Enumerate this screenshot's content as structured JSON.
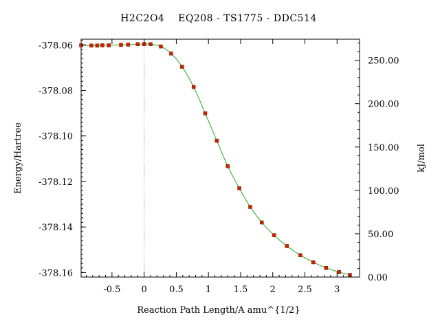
{
  "chart_data": {
    "type": "line",
    "title": "H2C2O4    EQ208 - TS1775 - DDC514",
    "xlabel": "Reaction Path Length/A amu^{1/2}",
    "ylabel": "Energy/Hartree",
    "y2label": "kJ/mol",
    "xlim": [
      -0.98,
      3.35
    ],
    "ylim": [
      -378.162,
      -378.0575
    ],
    "y2lim": [
      0.0,
      274.3
    ],
    "x_ticks": [
      {
        "value": -0.5,
        "label": "-0.5"
      },
      {
        "value": 0,
        "label": "0"
      },
      {
        "value": 0.5,
        "label": "0.5"
      },
      {
        "value": 1,
        "label": "1"
      },
      {
        "value": 1.5,
        "label": "1.5"
      },
      {
        "value": 2,
        "label": "2"
      },
      {
        "value": 2.5,
        "label": "2.5"
      },
      {
        "value": 3,
        "label": "3"
      }
    ],
    "y_ticks": [
      {
        "value": -378.06,
        "label": "-378.06"
      },
      {
        "value": -378.08,
        "label": "-378.08"
      },
      {
        "value": -378.1,
        "label": "-378.10"
      },
      {
        "value": -378.12,
        "label": "-378.12"
      },
      {
        "value": -378.14,
        "label": "-378.14"
      },
      {
        "value": -378.16,
        "label": "-378.16"
      }
    ],
    "y2_ticks": [
      {
        "value": 0,
        "label": "0.00"
      },
      {
        "value": 50,
        "label": "50.00"
      },
      {
        "value": 100,
        "label": "100.00"
      },
      {
        "value": 150,
        "label": "150.00"
      },
      {
        "value": 200,
        "label": "200.00"
      },
      {
        "value": 250,
        "label": "250.00"
      }
    ],
    "reference_line_x": 0,
    "series": [
      {
        "color_line": "#22aa22",
        "color_marker": "#cc2200",
        "points": [
          {
            "x": -0.98,
            "y": -378.0602
          },
          {
            "x": -0.82,
            "y": -378.0603
          },
          {
            "x": -0.73,
            "y": -378.0603
          },
          {
            "x": -0.65,
            "y": -378.0602
          },
          {
            "x": -0.55,
            "y": -378.0602
          },
          {
            "x": -0.36,
            "y": -378.06
          },
          {
            "x": -0.25,
            "y": -378.0599
          },
          {
            "x": -0.1,
            "y": -378.0597
          },
          {
            "x": 0.0,
            "y": -378.0597
          },
          {
            "x": 0.1,
            "y": -378.0597
          },
          {
            "x": 0.26,
            "y": -378.0607
          },
          {
            "x": 0.42,
            "y": -378.0638
          },
          {
            "x": 0.59,
            "y": -378.0696
          },
          {
            "x": 0.77,
            "y": -378.0785
          },
          {
            "x": 0.95,
            "y": -378.0901
          },
          {
            "x": 1.13,
            "y": -378.1021
          },
          {
            "x": 1.3,
            "y": -378.1133
          },
          {
            "x": 1.48,
            "y": -378.123
          },
          {
            "x": 1.65,
            "y": -378.1312
          },
          {
            "x": 1.83,
            "y": -378.138
          },
          {
            "x": 2.02,
            "y": -378.1436
          },
          {
            "x": 2.22,
            "y": -378.1484
          },
          {
            "x": 2.43,
            "y": -378.1524
          },
          {
            "x": 2.63,
            "y": -378.1555
          },
          {
            "x": 2.83,
            "y": -378.158
          },
          {
            "x": 3.03,
            "y": -378.1598
          },
          {
            "x": 3.2,
            "y": -378.1611
          }
        ]
      }
    ],
    "grid": false
  }
}
